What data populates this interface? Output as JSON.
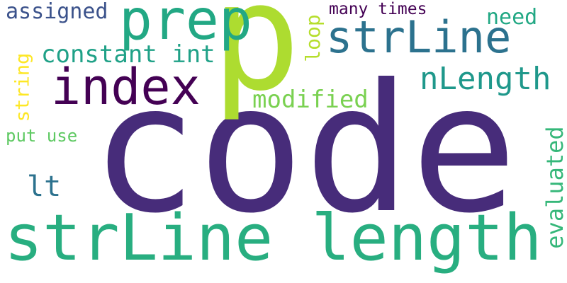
{
  "word_cloud": {
    "words": [
      {
        "id": "code",
        "text": "code",
        "color": "#472c7a"
      },
      {
        "id": "p",
        "text": "p",
        "color": "#addc30"
      },
      {
        "id": "strline_length",
        "text": "strLine length",
        "color": "#28ae80"
      },
      {
        "id": "strline",
        "text": "strLine",
        "color": "#2c728e"
      },
      {
        "id": "index",
        "text": "index",
        "color": "#440154"
      },
      {
        "id": "prep",
        "text": "prep",
        "color": "#22a884"
      },
      {
        "id": "nlength",
        "text": "nLength",
        "color": "#1f988b"
      },
      {
        "id": "assigned",
        "text": "assigned",
        "color": "#3b528b"
      },
      {
        "id": "constant_int",
        "text": "constant int",
        "color": "#1fa187"
      },
      {
        "id": "modified",
        "text": "modified",
        "color": "#7ad151"
      },
      {
        "id": "many_times",
        "text": "many times",
        "color": "#440154"
      },
      {
        "id": "need",
        "text": "need",
        "color": "#22a884"
      },
      {
        "id": "put_use",
        "text": "put use",
        "color": "#5ec962"
      },
      {
        "id": "lt",
        "text": "lt",
        "color": "#2c728e"
      },
      {
        "id": "string",
        "text": "string",
        "color": "#fde725"
      },
      {
        "id": "loop",
        "text": "loop",
        "color": "#b5de2b"
      },
      {
        "id": "evaluated",
        "text": "evaluated",
        "color": "#35b779"
      }
    ]
  }
}
